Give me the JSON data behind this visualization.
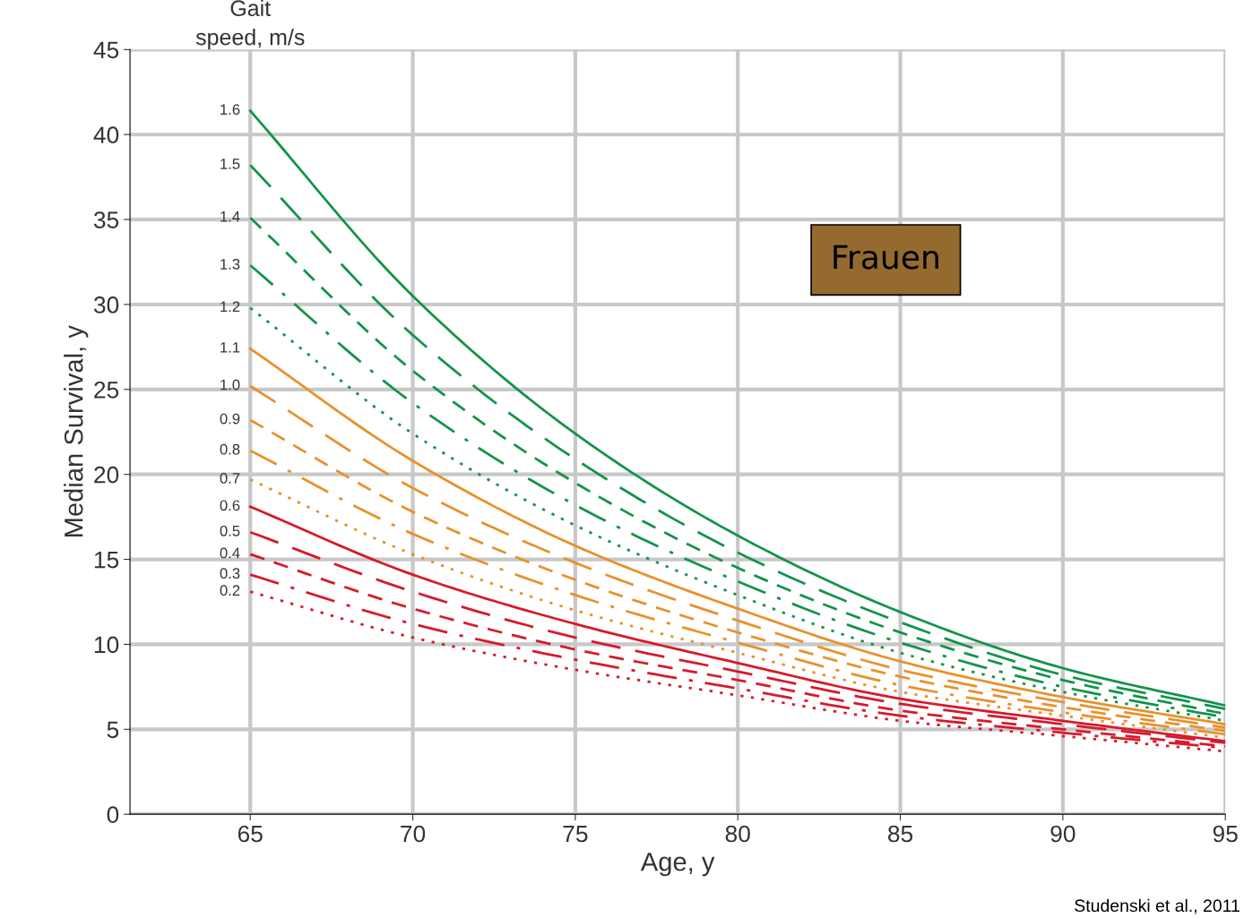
{
  "chart_data": {
    "type": "line",
    "xlabel": "Age, y",
    "ylabel": "Median Survival, y",
    "legend_title": "Gait\nspeed, m/s",
    "x": [
      65,
      70,
      75,
      80,
      85,
      90,
      95
    ],
    "xlim": [
      61.3,
      95
    ],
    "xticks": [
      65,
      70,
      75,
      80,
      85,
      90,
      95
    ],
    "ylim": [
      0,
      45
    ],
    "yticks": [
      0,
      5,
      10,
      15,
      20,
      25,
      30,
      35,
      40,
      45
    ],
    "grid": true,
    "legend": false,
    "annotations": [
      "Frauen",
      "Studenski et al., 2011"
    ],
    "series": [
      {
        "name": "1.6",
        "color": "#14934a",
        "line_style": "solid",
        "values": [
          41.4,
          30.5,
          22.4,
          16.4,
          11.9,
          8.6,
          6.4
        ]
      },
      {
        "name": "1.5",
        "color": "#14934a",
        "line_style": "longdash",
        "values": [
          38.2,
          28.2,
          20.9,
          15.4,
          11.3,
          8.2,
          6.2
        ]
      },
      {
        "name": "1.4",
        "color": "#14934a",
        "line_style": "dashed",
        "values": [
          35.1,
          26.1,
          19.5,
          14.5,
          10.7,
          7.9,
          5.9
        ]
      },
      {
        "name": "1.3",
        "color": "#14934a",
        "line_style": "dashdot",
        "values": [
          32.3,
          24.2,
          18.2,
          13.7,
          10.1,
          7.5,
          5.7
        ]
      },
      {
        "name": "1.2",
        "color": "#14934a",
        "line_style": "dotted",
        "values": [
          29.8,
          22.4,
          17.0,
          12.9,
          9.5,
          7.2,
          5.5
        ]
      },
      {
        "name": "1.1",
        "color": "#e8912b",
        "line_style": "solid",
        "values": [
          27.4,
          20.8,
          15.8,
          12.1,
          9.0,
          6.9,
          5.3
        ]
      },
      {
        "name": "1.0",
        "color": "#e8912b",
        "line_style": "longdash",
        "values": [
          25.2,
          19.2,
          14.8,
          11.4,
          8.5,
          6.6,
          5.1
        ]
      },
      {
        "name": "0.9",
        "color": "#e8912b",
        "line_style": "dashed",
        "values": [
          23.2,
          17.8,
          13.8,
          10.7,
          8.1,
          6.3,
          4.9
        ]
      },
      {
        "name": "0.8",
        "color": "#e8912b",
        "line_style": "dashdot",
        "values": [
          21.4,
          16.5,
          12.9,
          10.1,
          7.6,
          6.0,
          4.7
        ]
      },
      {
        "name": "0.7",
        "color": "#e8912b",
        "line_style": "dotted",
        "values": [
          19.7,
          15.3,
          12.0,
          9.5,
          7.2,
          5.8,
          4.5
        ]
      },
      {
        "name": "0.6",
        "color": "#d61a2c",
        "line_style": "solid",
        "values": [
          18.1,
          14.1,
          11.2,
          8.9,
          6.8,
          5.5,
          4.3
        ]
      },
      {
        "name": "0.5",
        "color": "#d61a2c",
        "line_style": "longdash",
        "values": [
          16.6,
          13.1,
          10.4,
          8.4,
          6.5,
          5.3,
          4.2
        ]
      },
      {
        "name": "0.4",
        "color": "#d61a2c",
        "line_style": "dashed",
        "values": [
          15.3,
          12.1,
          9.7,
          7.9,
          6.1,
          5.0,
          4.0
        ]
      },
      {
        "name": "0.3",
        "color": "#d61a2c",
        "line_style": "dashdot",
        "values": [
          14.1,
          11.2,
          9.1,
          7.4,
          5.8,
          4.8,
          3.9
        ]
      },
      {
        "name": "0.2",
        "color": "#d61a2c",
        "line_style": "dotted",
        "values": [
          13.1,
          10.4,
          8.5,
          7.0,
          5.5,
          4.6,
          3.7
        ]
      }
    ]
  }
}
